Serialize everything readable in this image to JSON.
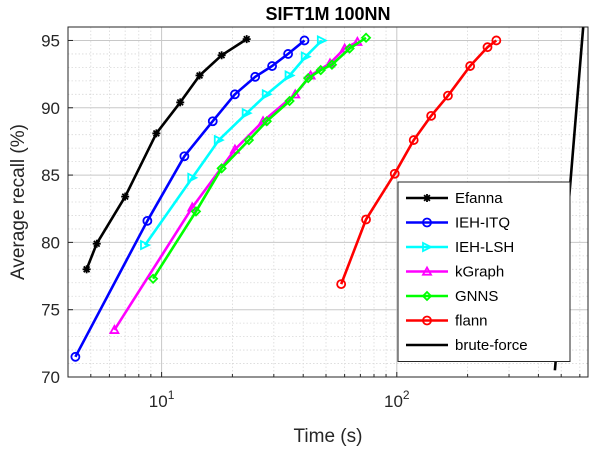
{
  "chart_data": {
    "type": "line",
    "title": "SIFT1M 100NN",
    "xlabel": "Time (s)",
    "ylabel": "Average recall (%)",
    "xscale": "log",
    "xlim": [
      4,
      650
    ],
    "ylim": [
      70,
      96
    ],
    "yticks": [
      70,
      75,
      80,
      85,
      90,
      95
    ],
    "xticks": [
      {
        "value": 10,
        "base": "10",
        "exp": "1"
      },
      {
        "value": 100,
        "base": "10",
        "exp": "2"
      }
    ],
    "grid": true,
    "legend_position": "bottom-right",
    "series": [
      {
        "name": "Efanna",
        "color": "#000000",
        "marker": "asterisk",
        "x": [
          4.8,
          5.3,
          7.0,
          9.5,
          12.0,
          14.5,
          18.0,
          23.0
        ],
        "y": [
          78.0,
          79.9,
          83.4,
          88.1,
          90.4,
          92.4,
          93.9,
          95.1
        ]
      },
      {
        "name": "IEH-ITQ",
        "color": "#0000ff",
        "marker": "circle",
        "x": [
          4.3,
          8.7,
          12.5,
          16.5,
          20.5,
          25.0,
          29.5,
          34.5,
          40.5
        ],
        "y": [
          71.5,
          81.6,
          86.4,
          89.0,
          91.0,
          92.3,
          93.1,
          94.0,
          95.0
        ]
      },
      {
        "name": "IEH-LSH",
        "color": "#00ffff",
        "marker": "triangle-right",
        "x": [
          8.5,
          13.5,
          17.5,
          23.0,
          28.0,
          35.0,
          41.0,
          48.0
        ],
        "y": [
          79.8,
          84.8,
          87.6,
          89.6,
          91.0,
          92.4,
          93.8,
          95.0
        ]
      },
      {
        "name": "kGraph",
        "color": "#ff00ff",
        "marker": "triangle-up",
        "x": [
          6.3,
          13.5,
          20.5,
          27.0,
          37.0,
          43.0,
          52.0,
          60.0,
          68.0
        ],
        "y": [
          73.5,
          82.6,
          86.9,
          89.0,
          91.0,
          92.4,
          93.3,
          94.4,
          94.9
        ]
      },
      {
        "name": "GNNS",
        "color": "#00ff00",
        "marker": "diamond",
        "x": [
          9.2,
          14.0,
          18.0,
          23.5,
          28.0,
          35.0,
          42.0,
          47.5,
          53.0,
          63.0,
          74.0
        ],
        "y": [
          77.3,
          82.3,
          85.5,
          87.6,
          89.0,
          90.5,
          92.2,
          92.8,
          93.2,
          94.4,
          95.2
        ]
      },
      {
        "name": "flann",
        "color": "#ff0000",
        "marker": "circle",
        "x": [
          58.0,
          74.0,
          98.0,
          118.0,
          140.0,
          165.0,
          205.0,
          243.0,
          265.0
        ],
        "y": [
          76.9,
          81.7,
          85.1,
          87.6,
          89.4,
          90.9,
          93.1,
          94.5,
          95.0
        ]
      },
      {
        "name": "brute-force",
        "color": "#000000",
        "marker": "none",
        "x": [
          470,
          620
        ],
        "y": [
          70.5,
          96.0
        ]
      }
    ]
  }
}
